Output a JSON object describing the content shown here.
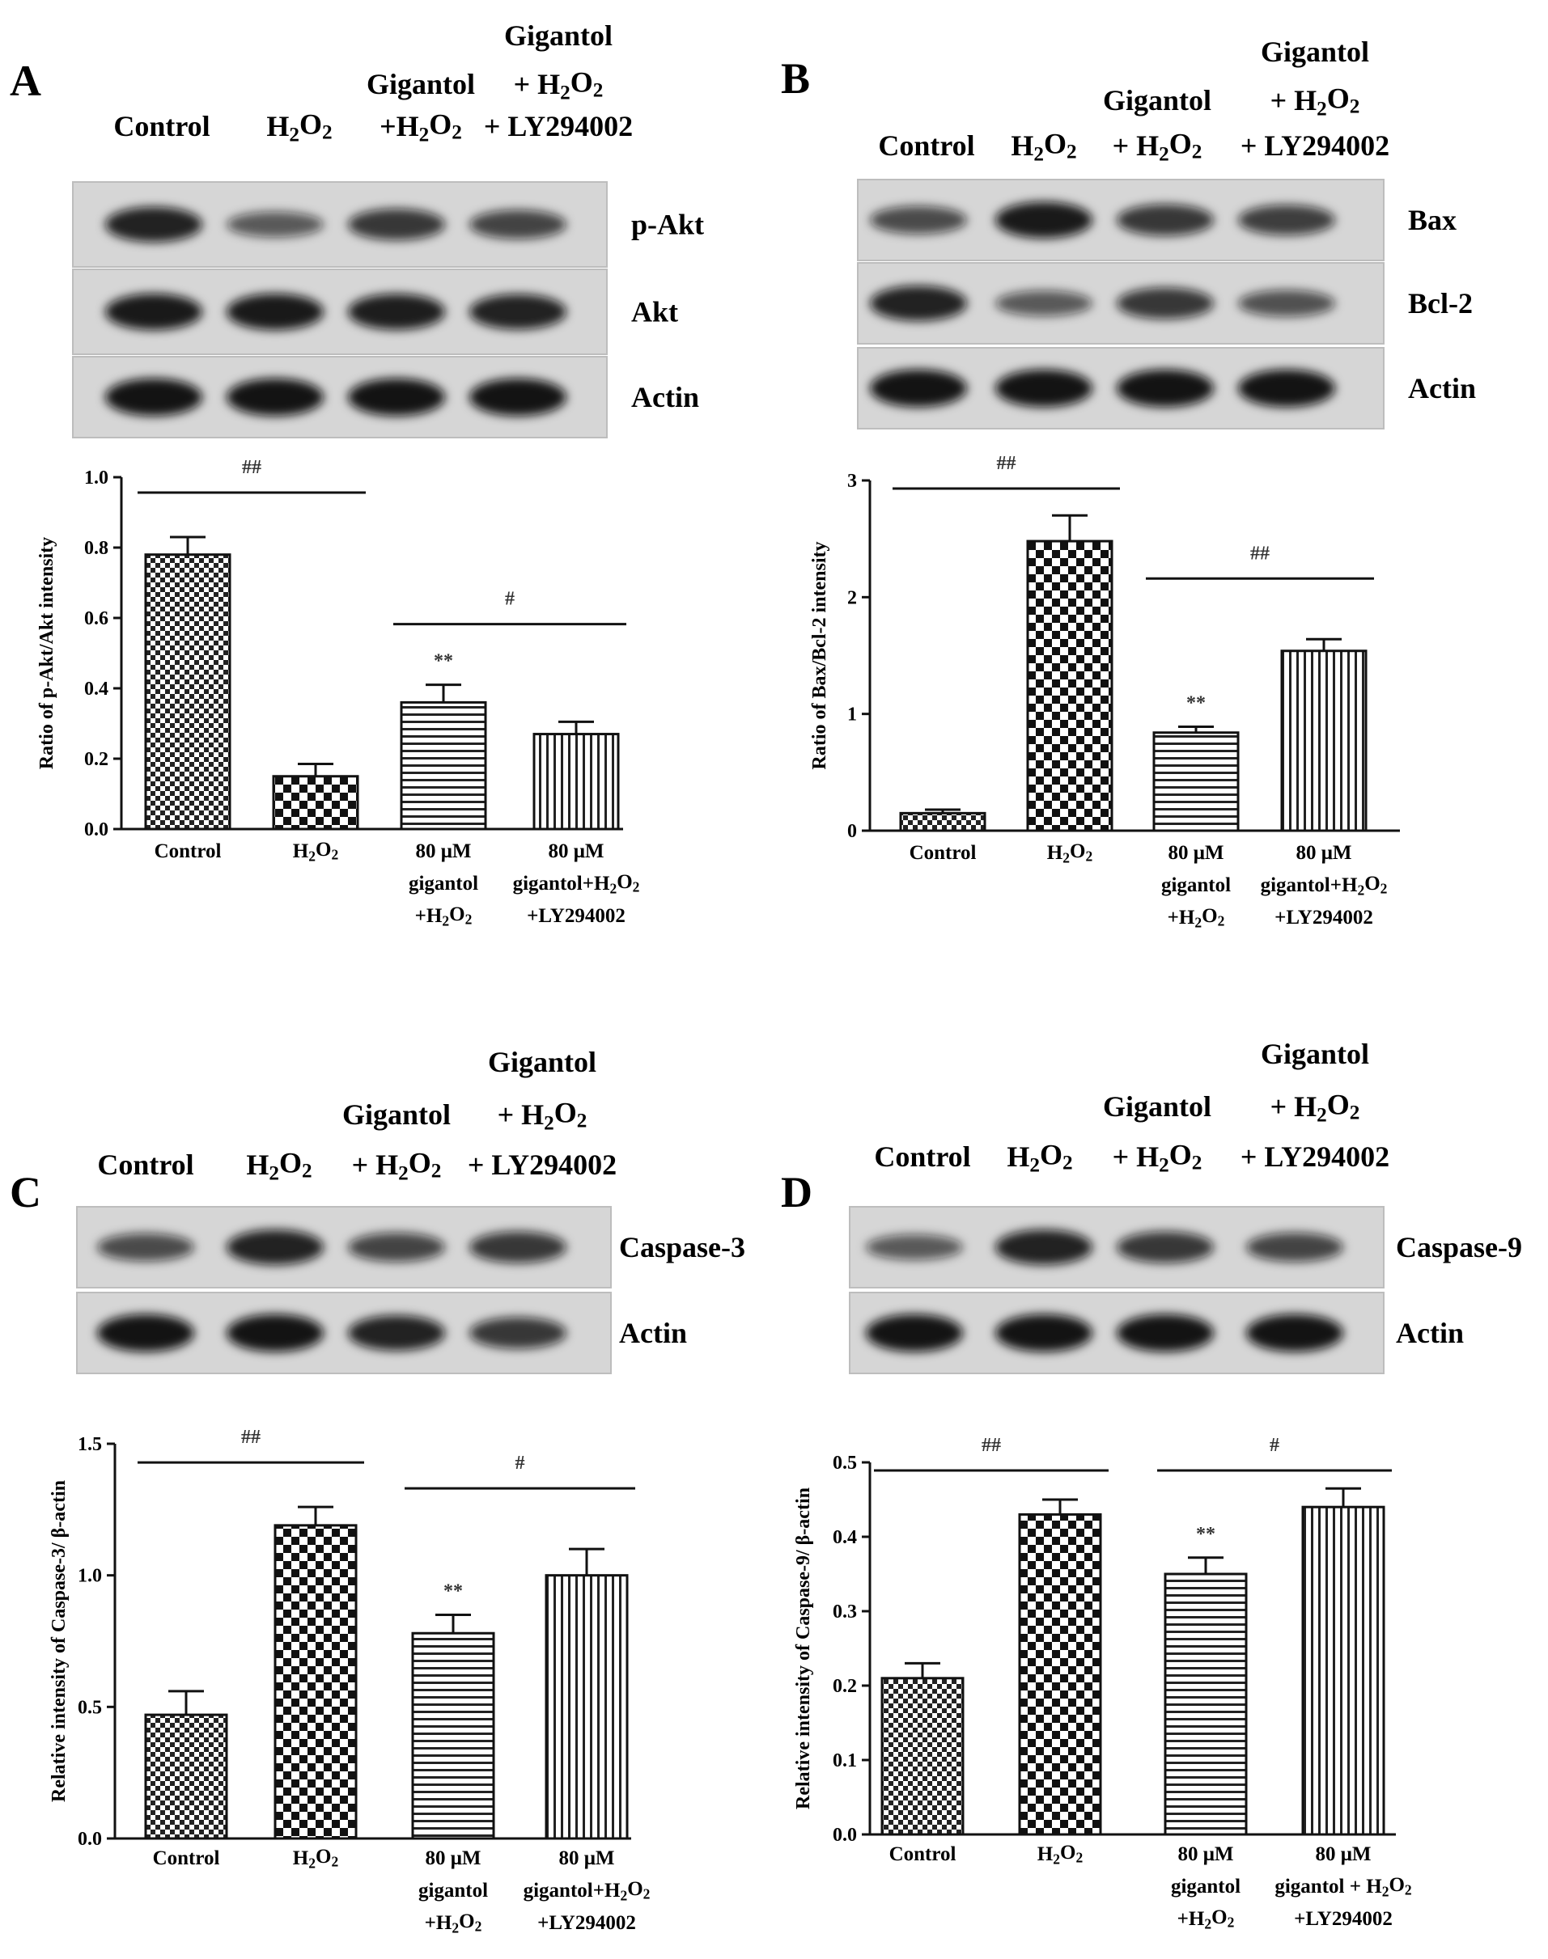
{
  "panels": [
    {
      "letter": "A",
      "blot": {
        "lane_headers": [
          {
            "lines": [
              "Control"
            ]
          },
          {
            "lines": [
              "H2O2"
            ]
          },
          {
            "lines": [
              "Gigantol",
              "+H2O2"
            ]
          },
          {
            "lines": [
              "Gigantol",
              "+ H2O2",
              "+ LY294002"
            ]
          }
        ],
        "rows": [
          {
            "label": "p-Akt",
            "bands": [
              0.85,
              0.45,
              0.7,
              0.6
            ]
          },
          {
            "label": "Akt",
            "bands": [
              0.9,
              0.9,
              0.88,
              0.85
            ]
          },
          {
            "label": "Actin",
            "bands": [
              0.95,
              0.95,
              0.95,
              0.95
            ]
          }
        ]
      },
      "chart_data": {
        "type": "bar",
        "ylabel": "Ratio of p-Akt/Akt intensity",
        "categories": [
          [
            "Control"
          ],
          [
            "H2O2"
          ],
          [
            "80 μM",
            "gigantol",
            "+H2O2"
          ],
          [
            "80 μM",
            "gigantol+H2O2",
            "+LY294002"
          ]
        ],
        "values": [
          0.78,
          0.15,
          0.36,
          0.27
        ],
        "errors": [
          0.05,
          0.035,
          0.05,
          0.035
        ],
        "significance": [
          "",
          "",
          "**",
          ""
        ],
        "ylim": [
          0,
          1.0
        ],
        "yticks": [
          "0.0",
          "0.2",
          "0.4",
          "0.6",
          "0.8",
          "1.0"
        ],
        "brackets": [
          {
            "from": 0,
            "to": 1,
            "label": "##"
          },
          {
            "from": 2,
            "to": 3,
            "label": "#"
          }
        ],
        "patterns": [
          "check",
          "check-large",
          "hstripe",
          "vstripe"
        ]
      }
    },
    {
      "letter": "B",
      "blot": {
        "lane_headers": [
          {
            "lines": [
              "Control"
            ]
          },
          {
            "lines": [
              "H2O2"
            ]
          },
          {
            "lines": [
              "Gigantol",
              "+ H2O2"
            ]
          },
          {
            "lines": [
              "Gigantol",
              "+ H2O2",
              "+ LY294002"
            ]
          }
        ],
        "rows": [
          {
            "label": "Bax",
            "bands": [
              0.55,
              0.9,
              0.7,
              0.65
            ]
          },
          {
            "label": "Bcl-2",
            "bands": [
              0.85,
              0.45,
              0.7,
              0.5
            ]
          },
          {
            "label": "Actin",
            "bands": [
              0.95,
              0.95,
              0.95,
              0.95
            ]
          }
        ]
      },
      "chart_data": {
        "type": "bar",
        "ylabel": "Ratio of Bax/Bcl-2 intensity",
        "categories": [
          [
            "Control"
          ],
          [
            "H2O2"
          ],
          [
            "80 μM",
            "gigantol",
            "+H2O2"
          ],
          [
            "80 μM",
            "gigantol+H2O2",
            "+LY294002"
          ]
        ],
        "values": [
          0.15,
          2.48,
          0.84,
          1.54
        ],
        "errors": [
          0.03,
          0.22,
          0.05,
          0.1
        ],
        "significance": [
          "",
          "",
          "**",
          ""
        ],
        "ylim": [
          0,
          3
        ],
        "yticks": [
          "0",
          "1",
          "2",
          "3"
        ],
        "brackets": [
          {
            "from": 0,
            "to": 1,
            "label": "##"
          },
          {
            "from": 2,
            "to": 3,
            "label": "##"
          }
        ],
        "patterns": [
          "check",
          "check-large",
          "hstripe",
          "vstripe"
        ]
      }
    },
    {
      "letter": "C",
      "blot": {
        "lane_headers": [
          {
            "lines": [
              "Control"
            ]
          },
          {
            "lines": [
              "H2O2"
            ]
          },
          {
            "lines": [
              "Gigantol",
              "+ H2O2"
            ]
          },
          {
            "lines": [
              "Gigantol",
              "+ H2O2",
              "+ LY294002"
            ]
          }
        ],
        "rows": [
          {
            "label": "Caspase-3",
            "bands": [
              0.55,
              0.85,
              0.6,
              0.7
            ]
          },
          {
            "label": "Actin",
            "bands": [
              0.95,
              0.95,
              0.85,
              0.7
            ]
          }
        ]
      },
      "chart_data": {
        "type": "bar",
        "ylabel": "Relative intensity of Caspase-3/ β-actin",
        "categories": [
          [
            "Control"
          ],
          [
            "H2O2"
          ],
          [
            "80 μM",
            "gigantol",
            "+H2O2"
          ],
          [
            "80 μM",
            "gigantol+H2O2",
            "+LY294002"
          ]
        ],
        "values": [
          0.47,
          1.19,
          0.78,
          1.0
        ],
        "errors": [
          0.09,
          0.07,
          0.07,
          0.1
        ],
        "significance": [
          "",
          "",
          "**",
          ""
        ],
        "ylim": [
          0,
          1.5
        ],
        "yticks": [
          "0.0",
          "0.5",
          "1.0",
          "1.5"
        ],
        "brackets": [
          {
            "from": 0,
            "to": 1,
            "label": "##"
          },
          {
            "from": 2,
            "to": 3,
            "label": "#"
          }
        ],
        "patterns": [
          "check",
          "check-large",
          "hstripe",
          "vstripe"
        ]
      }
    },
    {
      "letter": "D",
      "blot": {
        "lane_headers": [
          {
            "lines": [
              "Control"
            ]
          },
          {
            "lines": [
              "H2O2"
            ]
          },
          {
            "lines": [
              "Gigantol",
              "+ H2O2"
            ]
          },
          {
            "lines": [
              "Gigantol",
              "+ H2O2",
              "+ LY294002"
            ]
          }
        ],
        "rows": [
          {
            "label": "Caspase-9",
            "bands": [
              0.45,
              0.85,
              0.7,
              0.6
            ]
          },
          {
            "label": "Actin",
            "bands": [
              0.95,
              0.95,
              0.95,
              0.95
            ]
          }
        ]
      },
      "chart_data": {
        "type": "bar",
        "ylabel": "Relative intensity of Caspase-9/ β-actin",
        "categories": [
          [
            "Control"
          ],
          [
            "H2O2"
          ],
          [
            "80 μM",
            "gigantol",
            "+H2O2"
          ],
          [
            "80 μM",
            "gigantol + H2O2",
            "+LY294002"
          ]
        ],
        "values": [
          0.21,
          0.43,
          0.35,
          0.44
        ],
        "errors": [
          0.02,
          0.02,
          0.022,
          0.025
        ],
        "significance": [
          "",
          "",
          "**",
          ""
        ],
        "ylim": [
          0,
          0.5
        ],
        "yticks": [
          "0.0",
          "0.1",
          "0.2",
          "0.3",
          "0.4",
          "0.5"
        ],
        "brackets": [
          {
            "from": 0,
            "to": 1,
            "label": "##"
          },
          {
            "from": 2,
            "to": 3,
            "label": "#"
          }
        ],
        "patterns": [
          "check",
          "check-large",
          "hstripe",
          "vstripe"
        ]
      }
    }
  ]
}
